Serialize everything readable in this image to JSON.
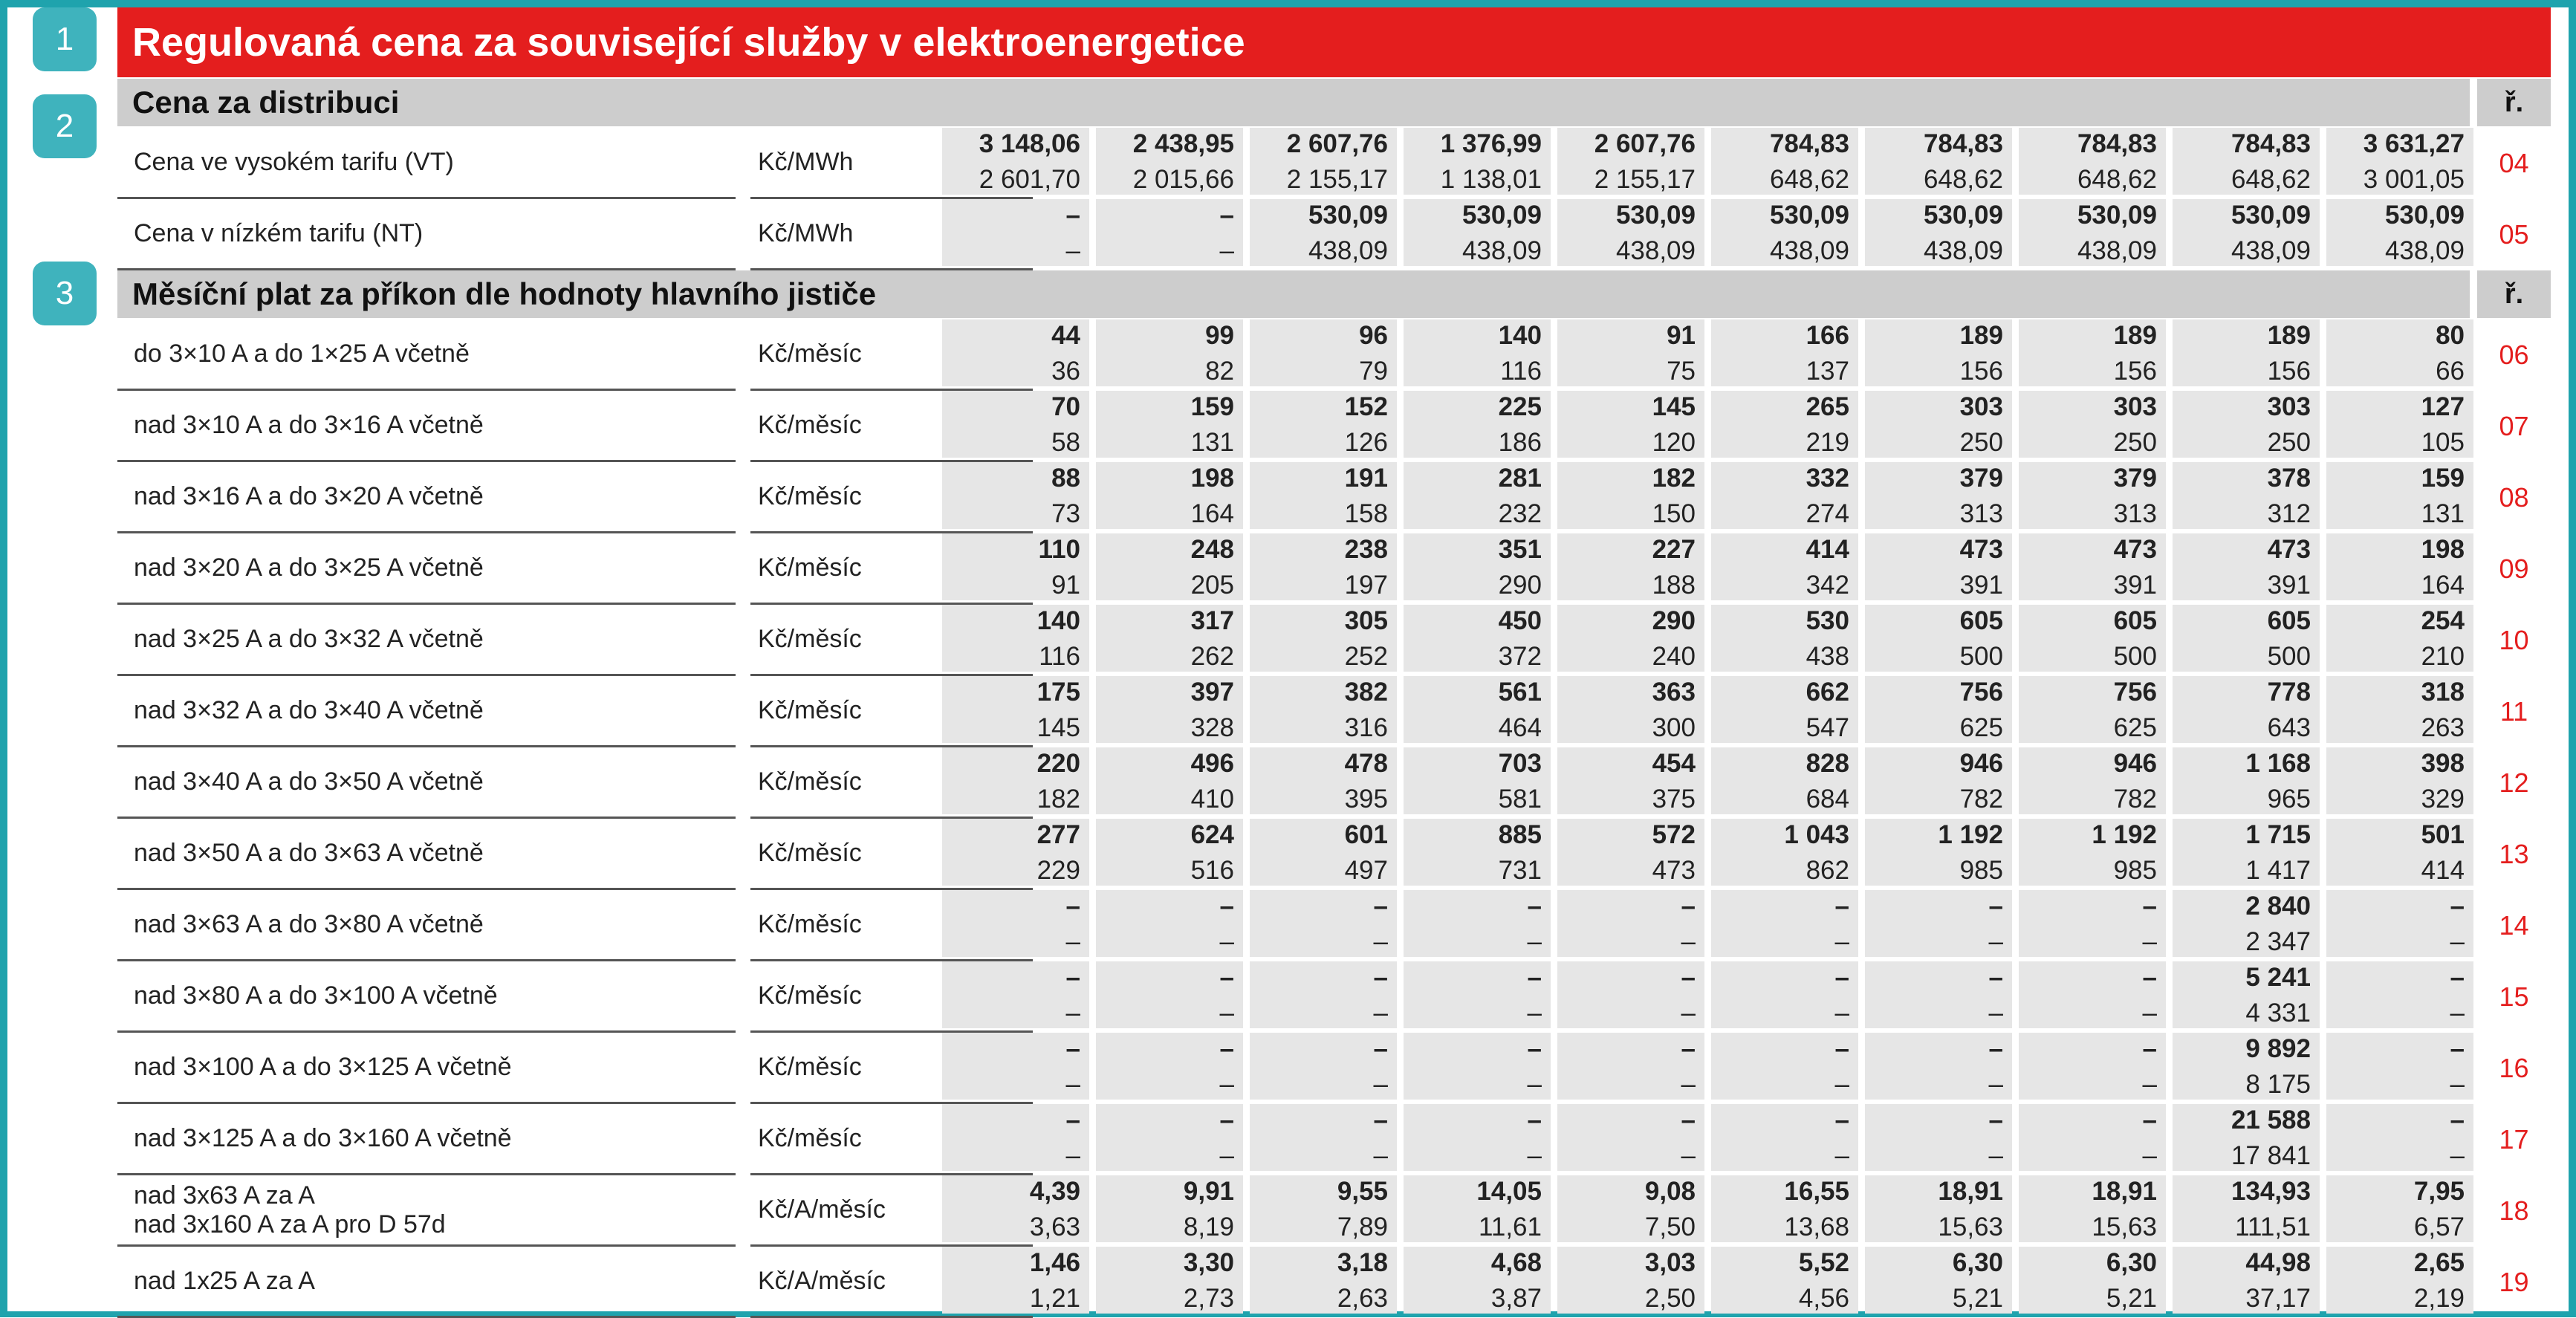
{
  "title": "Regulovaná cena za související služby v elektroenergetice",
  "badges": [
    "1",
    "2",
    "3"
  ],
  "colors": {
    "title_bar": "#e41e1e",
    "frame": "#1fa3ad",
    "badge": "#3fb3bd",
    "section_bar": "#cdcdcd",
    "row_number": "#e41e1e"
  },
  "sections": [
    {
      "title": "Cena za distribuci",
      "r_header": "ř.",
      "rows": [
        {
          "label": [
            "Cena ve vysokém tarifu (VT)"
          ],
          "unit": "Kč/MWh",
          "no": "04",
          "v1": [
            "3 148,06",
            "2 438,95",
            "2 607,76",
            "1 376,99",
            "2 607,76",
            "784,83",
            "784,83",
            "784,83",
            "784,83",
            "3 631,27"
          ],
          "v2": [
            "2 601,70",
            "2 015,66",
            "2 155,17",
            "1 138,01",
            "2 155,17",
            "648,62",
            "648,62",
            "648,62",
            "648,62",
            "3 001,05"
          ]
        },
        {
          "label": [
            "Cena v nízkém tarifu (NT)"
          ],
          "unit": "Kč/MWh",
          "no": "05",
          "v1": [
            "–",
            "–",
            "530,09",
            "530,09",
            "530,09",
            "530,09",
            "530,09",
            "530,09",
            "530,09",
            "530,09"
          ],
          "v2": [
            "–",
            "–",
            "438,09",
            "438,09",
            "438,09",
            "438,09",
            "438,09",
            "438,09",
            "438,09",
            "438,09"
          ]
        }
      ]
    },
    {
      "title": "Měsíční plat za příkon dle hodnoty hlavního jističe",
      "r_header": "ř.",
      "rows": [
        {
          "label": [
            "do 3×10 A a do 1×25 A včetně"
          ],
          "unit": "Kč/měsíc",
          "no": "06",
          "v1": [
            "44",
            "99",
            "96",
            "140",
            "91",
            "166",
            "189",
            "189",
            "189",
            "80"
          ],
          "v2": [
            "36",
            "82",
            "79",
            "116",
            "75",
            "137",
            "156",
            "156",
            "156",
            "66"
          ]
        },
        {
          "label": [
            "nad 3×10 A a do 3×16 A včetně"
          ],
          "unit": "Kč/měsíc",
          "no": "07",
          "v1": [
            "70",
            "159",
            "152",
            "225",
            "145",
            "265",
            "303",
            "303",
            "303",
            "127"
          ],
          "v2": [
            "58",
            "131",
            "126",
            "186",
            "120",
            "219",
            "250",
            "250",
            "250",
            "105"
          ]
        },
        {
          "label": [
            "nad 3×16 A a do 3×20 A včetně"
          ],
          "unit": "Kč/měsíc",
          "no": "08",
          "v1": [
            "88",
            "198",
            "191",
            "281",
            "182",
            "332",
            "379",
            "379",
            "378",
            "159"
          ],
          "v2": [
            "73",
            "164",
            "158",
            "232",
            "150",
            "274",
            "313",
            "313",
            "312",
            "131"
          ]
        },
        {
          "label": [
            "nad 3×20 A a do 3×25 A včetně"
          ],
          "unit": "Kč/měsíc",
          "no": "09",
          "v1": [
            "110",
            "248",
            "238",
            "351",
            "227",
            "414",
            "473",
            "473",
            "473",
            "198"
          ],
          "v2": [
            "91",
            "205",
            "197",
            "290",
            "188",
            "342",
            "391",
            "391",
            "391",
            "164"
          ]
        },
        {
          "label": [
            "nad 3×25 A a do 3×32 A včetně"
          ],
          "unit": "Kč/měsíc",
          "no": "10",
          "v1": [
            "140",
            "317",
            "305",
            "450",
            "290",
            "530",
            "605",
            "605",
            "605",
            "254"
          ],
          "v2": [
            "116",
            "262",
            "252",
            "372",
            "240",
            "438",
            "500",
            "500",
            "500",
            "210"
          ]
        },
        {
          "label": [
            "nad 3×32 A a do 3×40 A včetně"
          ],
          "unit": "Kč/měsíc",
          "no": "11",
          "v1": [
            "175",
            "397",
            "382",
            "561",
            "363",
            "662",
            "756",
            "756",
            "778",
            "318"
          ],
          "v2": [
            "145",
            "328",
            "316",
            "464",
            "300",
            "547",
            "625",
            "625",
            "643",
            "263"
          ]
        },
        {
          "label": [
            "nad 3×40 A a do 3×50 A včetně"
          ],
          "unit": "Kč/měsíc",
          "no": "12",
          "v1": [
            "220",
            "496",
            "478",
            "703",
            "454",
            "828",
            "946",
            "946",
            "1 168",
            "398"
          ],
          "v2": [
            "182",
            "410",
            "395",
            "581",
            "375",
            "684",
            "782",
            "782",
            "965",
            "329"
          ]
        },
        {
          "label": [
            "nad 3×50 A a do 3×63 A včetně"
          ],
          "unit": "Kč/měsíc",
          "no": "13",
          "v1": [
            "277",
            "624",
            "601",
            "885",
            "572",
            "1 043",
            "1 192",
            "1 192",
            "1 715",
            "501"
          ],
          "v2": [
            "229",
            "516",
            "497",
            "731",
            "473",
            "862",
            "985",
            "985",
            "1 417",
            "414"
          ]
        },
        {
          "label": [
            "nad 3×63 A a do 3×80 A včetně"
          ],
          "unit": "Kč/měsíc",
          "no": "14",
          "v1": [
            "–",
            "–",
            "–",
            "–",
            "–",
            "–",
            "–",
            "–",
            "2 840",
            "–"
          ],
          "v2": [
            "–",
            "–",
            "–",
            "–",
            "–",
            "–",
            "–",
            "–",
            "2 347",
            "–"
          ]
        },
        {
          "label": [
            "nad 3×80 A a do 3×100 A včetně"
          ],
          "unit": "Kč/měsíc",
          "no": "15",
          "v1": [
            "–",
            "–",
            "–",
            "–",
            "–",
            "–",
            "–",
            "–",
            "5 241",
            "–"
          ],
          "v2": [
            "–",
            "–",
            "–",
            "–",
            "–",
            "–",
            "–",
            "–",
            "4 331",
            "–"
          ]
        },
        {
          "label": [
            "nad 3×100 A a do 3×125 A včetně"
          ],
          "unit": "Kč/měsíc",
          "no": "16",
          "v1": [
            "–",
            "–",
            "–",
            "–",
            "–",
            "–",
            "–",
            "–",
            "9 892",
            "–"
          ],
          "v2": [
            "–",
            "–",
            "–",
            "–",
            "–",
            "–",
            "–",
            "–",
            "8 175",
            "–"
          ]
        },
        {
          "label": [
            "nad 3×125 A a do 3×160 A včetně"
          ],
          "unit": "Kč/měsíc",
          "no": "17",
          "v1": [
            "–",
            "–",
            "–",
            "–",
            "–",
            "–",
            "–",
            "–",
            "21 588",
            "–"
          ],
          "v2": [
            "–",
            "–",
            "–",
            "–",
            "–",
            "–",
            "–",
            "–",
            "17 841",
            "–"
          ]
        },
        {
          "label": [
            "nad 3x63 A za A",
            "nad 3x160 A za A pro D 57d"
          ],
          "unit": "Kč/A/měsíc",
          "no": "18",
          "v1": [
            "4,39",
            "9,91",
            "9,55",
            "14,05",
            "9,08",
            "16,55",
            "18,91",
            "18,91",
            "134,93",
            "7,95"
          ],
          "v2": [
            "3,63",
            "8,19",
            "7,89",
            "11,61",
            "7,50",
            "13,68",
            "15,63",
            "15,63",
            "111,51",
            "6,57"
          ]
        },
        {
          "label": [
            "nad 1x25 A za A"
          ],
          "unit": "Kč/A/měsíc",
          "no": "19",
          "v1": [
            "1,46",
            "3,30",
            "3,18",
            "4,68",
            "3,03",
            "5,52",
            "6,30",
            "6,30",
            "44,98",
            "2,65"
          ],
          "v2": [
            "1,21",
            "2,73",
            "2,63",
            "3,87",
            "2,50",
            "4,56",
            "5,21",
            "5,21",
            "37,17",
            "2,19"
          ]
        }
      ]
    }
  ]
}
